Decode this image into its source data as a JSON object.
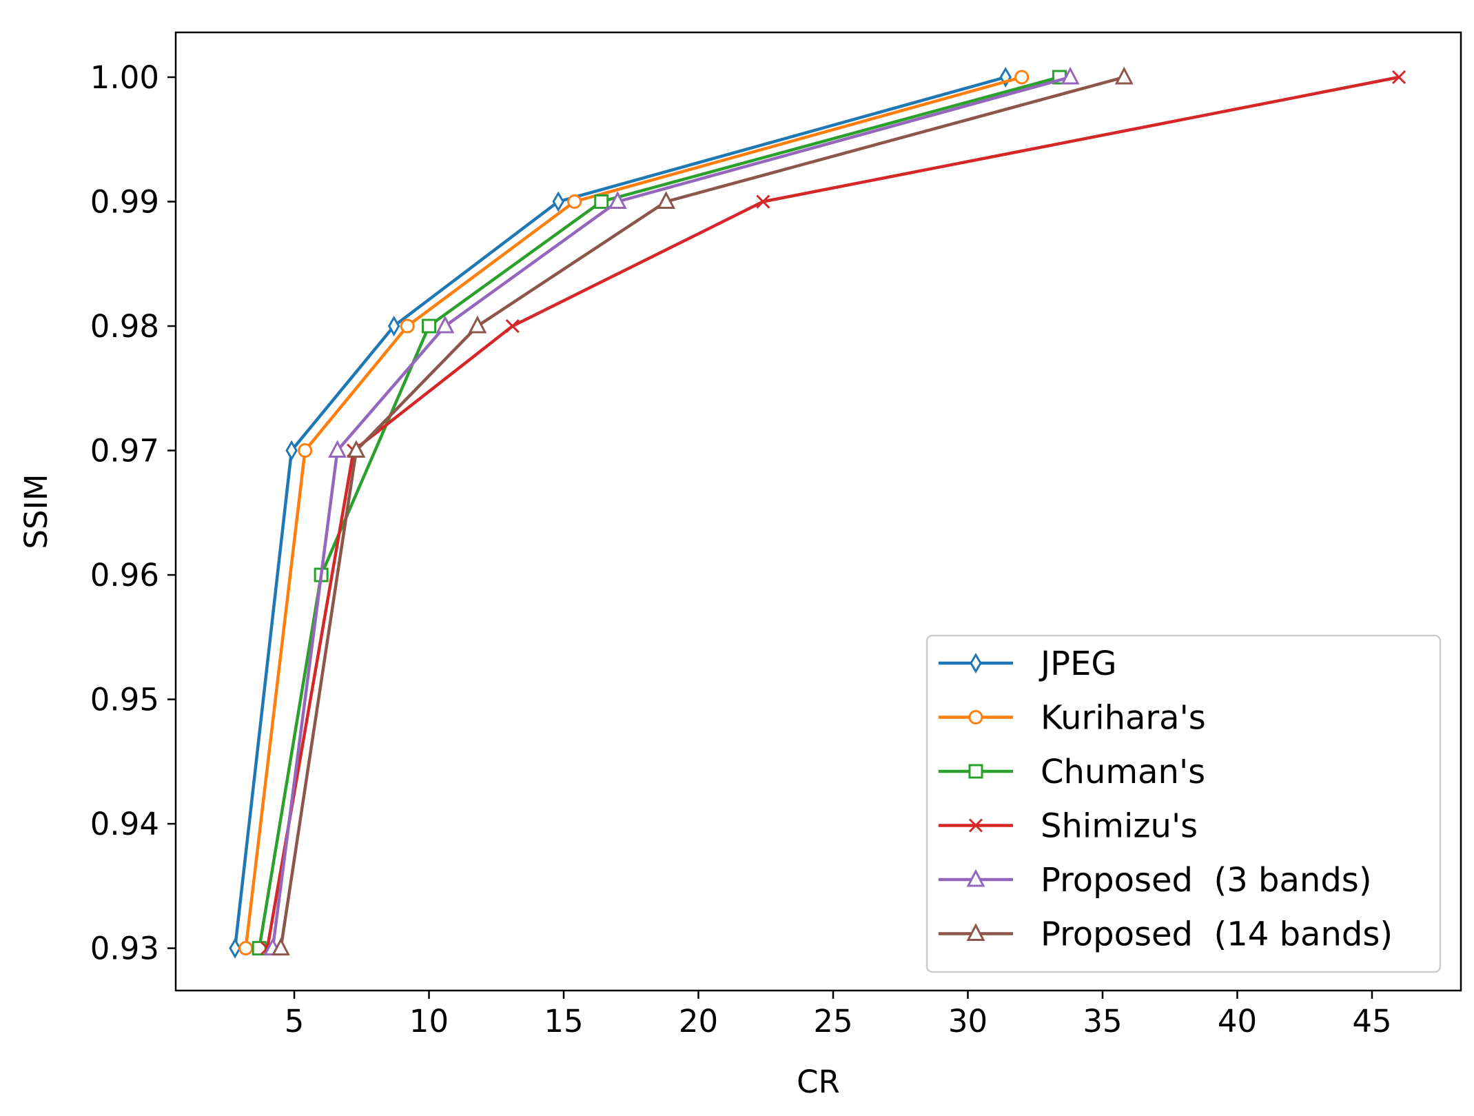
{
  "chart_data": {
    "type": "line",
    "title": "",
    "xlabel": "CR",
    "ylabel": "SSIM",
    "xlim": [
      0.6,
      48.3
    ],
    "ylim": [
      0.9266,
      1.0036
    ],
    "xticks": [
      5,
      10,
      15,
      20,
      25,
      30,
      35,
      40,
      45
    ],
    "yticks": [
      0.93,
      0.94,
      0.95,
      0.96,
      0.97,
      0.98,
      0.99,
      1.0
    ],
    "xtick_labels": [
      "5",
      "10",
      "15",
      "20",
      "25",
      "30",
      "35",
      "40",
      "45"
    ],
    "ytick_labels": [
      "0.93",
      "0.94",
      "0.95",
      "0.96",
      "0.97",
      "0.98",
      "0.99",
      "1.00"
    ],
    "grid": false,
    "legend_position": "lower-right",
    "series": [
      {
        "name": "JPEG",
        "color": "#1f77b4",
        "marker": "thin-diamond",
        "points": [
          [
            2.8,
            0.93
          ],
          [
            4.9,
            0.97
          ],
          [
            8.7,
            0.98
          ],
          [
            14.8,
            0.99
          ],
          [
            31.4,
            1.0
          ]
        ]
      },
      {
        "name": "Kurihara's",
        "color": "#ff7f0e",
        "marker": "circle",
        "points": [
          [
            3.2,
            0.93
          ],
          [
            5.4,
            0.97
          ],
          [
            9.2,
            0.98
          ],
          [
            15.4,
            0.99
          ],
          [
            32.0,
            1.0
          ]
        ]
      },
      {
        "name": "Chuman's",
        "color": "#2ca02c",
        "marker": "square",
        "points": [
          [
            3.7,
            0.93
          ],
          [
            6.0,
            0.96
          ],
          [
            10.0,
            0.98
          ],
          [
            16.4,
            0.99
          ],
          [
            33.4,
            1.0
          ]
        ]
      },
      {
        "name": "Shimizu's",
        "color": "#d62728",
        "marker": "x",
        "points": [
          [
            4.0,
            0.93
          ],
          [
            7.2,
            0.97
          ],
          [
            13.1,
            0.98
          ],
          [
            22.4,
            0.99
          ],
          [
            46.0,
            1.0
          ]
        ]
      },
      {
        "name": "Proposed  (3 bands)",
        "color": "#9467bd",
        "marker": "triangle",
        "points": [
          [
            4.2,
            0.93
          ],
          [
            6.6,
            0.97
          ],
          [
            10.6,
            0.98
          ],
          [
            17.0,
            0.99
          ],
          [
            33.8,
            1.0
          ]
        ]
      },
      {
        "name": "Proposed  (14 bands)",
        "color": "#8c564b",
        "marker": "triangle",
        "points": [
          [
            4.5,
            0.93
          ],
          [
            7.3,
            0.97
          ],
          [
            11.8,
            0.98
          ],
          [
            18.8,
            0.99
          ],
          [
            35.8,
            1.0
          ]
        ]
      }
    ]
  }
}
